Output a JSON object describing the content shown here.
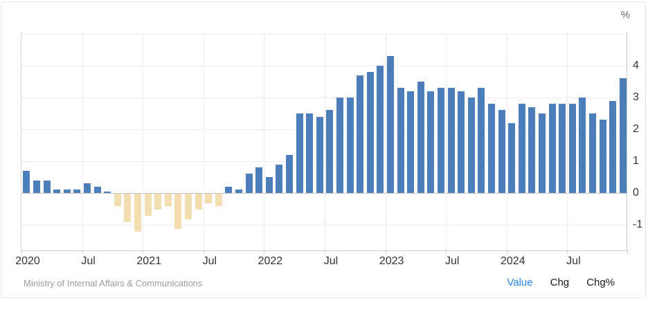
{
  "unit_label": "%",
  "footer": {
    "source": "Ministry of Internal Affairs & Communications",
    "tabs": [
      {
        "label": "Value",
        "active": true
      },
      {
        "label": "Chg",
        "active": false
      },
      {
        "label": "Chg%",
        "active": false
      }
    ]
  },
  "colors": {
    "bar_positive": "#4d7ebc",
    "bar_negative": "#f2deb0",
    "active_tab": "#2584e8",
    "axis_text": "#333333",
    "source_text": "#9b9b9b"
  },
  "chart_data": {
    "type": "bar",
    "title": "",
    "xlabel": "",
    "ylabel": "%",
    "ylim": [
      -1.8,
      5.0
    ],
    "grid": true,
    "legend_position": "none",
    "y_ticks": [
      4,
      3,
      2,
      1,
      0,
      -1
    ],
    "y_grid_values": [
      5,
      4,
      3,
      2,
      1,
      0,
      -1
    ],
    "x_tick_labels": [
      "2020",
      "Jul",
      "2021",
      "Jul",
      "2022",
      "Jul",
      "2023",
      "Jul",
      "2024",
      "Jul"
    ],
    "months": [
      "2020-01",
      "2020-02",
      "2020-03",
      "2020-04",
      "2020-05",
      "2020-06",
      "2020-07",
      "2020-08",
      "2020-09",
      "2020-10",
      "2020-11",
      "2020-12",
      "2021-01",
      "2021-02",
      "2021-03",
      "2021-04",
      "2021-05",
      "2021-06",
      "2021-07",
      "2021-08",
      "2021-09",
      "2021-10",
      "2021-11",
      "2021-12",
      "2022-01",
      "2022-02",
      "2022-03",
      "2022-04",
      "2022-05",
      "2022-06",
      "2022-07",
      "2022-08",
      "2022-09",
      "2022-10",
      "2022-11",
      "2022-12",
      "2023-01",
      "2023-02",
      "2023-03",
      "2023-04",
      "2023-05",
      "2023-06",
      "2023-07",
      "2023-08",
      "2023-09",
      "2023-10",
      "2023-11",
      "2023-12",
      "2024-01",
      "2024-02",
      "2024-03",
      "2024-04",
      "2024-05",
      "2024-06",
      "2024-07",
      "2024-08",
      "2024-09",
      "2024-10",
      "2024-11",
      "2024-12"
    ],
    "values": [
      0.7,
      0.4,
      0.4,
      0.1,
      0.1,
      0.1,
      0.3,
      0.2,
      0.0,
      -0.4,
      -0.9,
      -1.2,
      -0.7,
      -0.5,
      -0.4,
      -1.1,
      -0.8,
      -0.5,
      -0.3,
      -0.4,
      0.2,
      0.1,
      0.6,
      0.8,
      0.5,
      0.9,
      1.2,
      2.5,
      2.5,
      2.4,
      2.6,
      3.0,
      3.0,
      3.7,
      3.8,
      4.0,
      4.3,
      3.3,
      3.2,
      3.5,
      3.2,
      3.3,
      3.3,
      3.2,
      3.0,
      3.3,
      2.8,
      2.6,
      2.2,
      2.8,
      2.7,
      2.5,
      2.8,
      2.8,
      2.8,
      3.0,
      2.5,
      2.3,
      2.9,
      3.6
    ]
  }
}
